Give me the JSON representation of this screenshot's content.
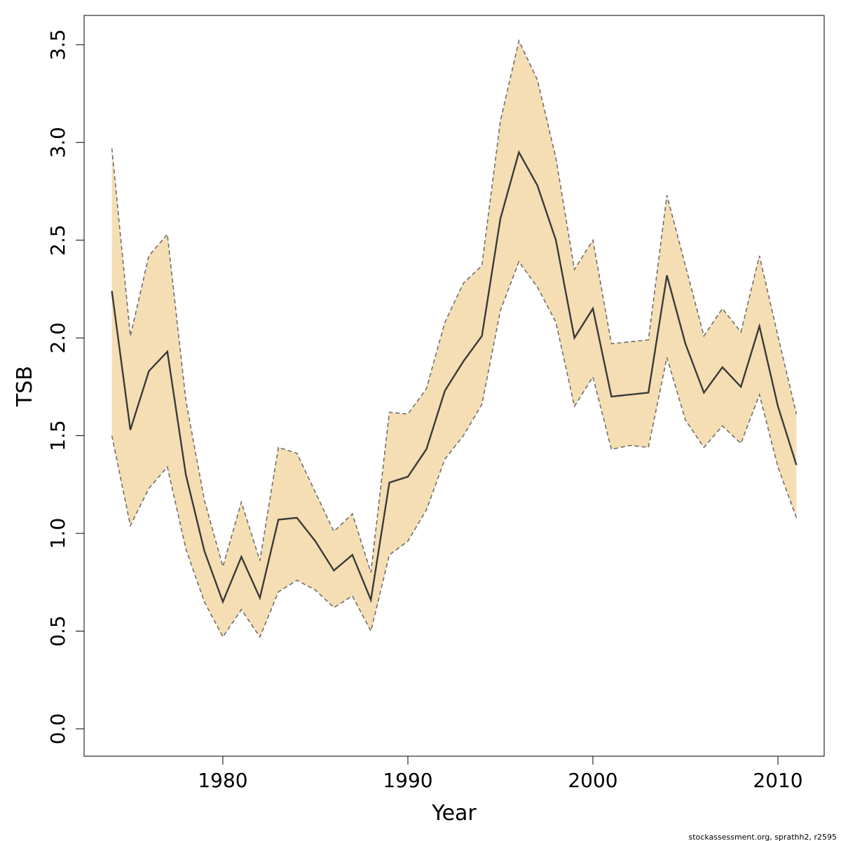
{
  "chart_data": {
    "type": "area",
    "title": "",
    "xlabel": "Year",
    "ylabel": "TSB",
    "xlim": [
      1972.5,
      2012.5
    ],
    "ylim": [
      -0.14,
      3.65
    ],
    "x_ticks": [
      1980,
      1990,
      2000,
      2010
    ],
    "y_ticks": [
      "0.0",
      "0.5",
      "1.0",
      "1.5",
      "2.0",
      "2.5",
      "3.0",
      "3.5"
    ],
    "grid": false,
    "legend": "none",
    "colors": {
      "band_fill": "#f5deb3",
      "band_edge": "#6e6e6e",
      "line": "#3a3a3a",
      "frame": "#000000"
    },
    "x": [
      1974,
      1975,
      1976,
      1977,
      1978,
      1979,
      1980,
      1981,
      1982,
      1983,
      1984,
      1985,
      1986,
      1987,
      1988,
      1989,
      1990,
      1991,
      1992,
      1993,
      1994,
      1995,
      1996,
      1997,
      1998,
      1999,
      2000,
      2001,
      2002,
      2003,
      2004,
      2005,
      2006,
      2007,
      2008,
      2009,
      2010,
      2011
    ],
    "series": [
      {
        "name": "",
        "values": [
          2.24,
          1.53,
          1.83,
          1.93,
          1.3,
          0.91,
          0.65,
          0.88,
          0.67,
          1.07,
          1.08,
          0.96,
          0.81,
          0.89,
          0.66,
          1.26,
          1.29,
          1.43,
          1.73,
          1.88,
          2.01,
          2.61,
          2.95,
          2.78,
          2.5,
          2.0,
          2.15,
          1.7,
          1.71,
          1.72,
          2.32,
          1.97,
          1.72,
          1.85,
          1.75,
          2.06,
          1.65,
          1.35
        ]
      }
    ],
    "lower": [
      1.5,
      1.04,
      1.23,
      1.34,
      0.92,
      0.65,
      0.47,
      0.61,
      0.47,
      0.7,
      0.76,
      0.71,
      0.62,
      0.68,
      0.5,
      0.89,
      0.96,
      1.12,
      1.38,
      1.5,
      1.66,
      2.14,
      2.39,
      2.26,
      2.08,
      1.65,
      1.8,
      1.43,
      1.45,
      1.44,
      1.9,
      1.58,
      1.44,
      1.55,
      1.46,
      1.71,
      1.34,
      1.08
    ],
    "upper": [
      2.97,
      2.01,
      2.42,
      2.53,
      1.68,
      1.17,
      0.83,
      1.16,
      0.86,
      1.44,
      1.41,
      1.21,
      1.01,
      1.1,
      0.8,
      1.62,
      1.61,
      1.74,
      2.08,
      2.28,
      2.37,
      3.11,
      3.52,
      3.32,
      2.92,
      2.35,
      2.5,
      1.97,
      1.98,
      1.99,
      2.73,
      2.37,
      2.01,
      2.15,
      2.03,
      2.42,
      2.01,
      1.61
    ]
  },
  "footer": {
    "credit": "stockassessment.org, sprathh2, r2595"
  }
}
